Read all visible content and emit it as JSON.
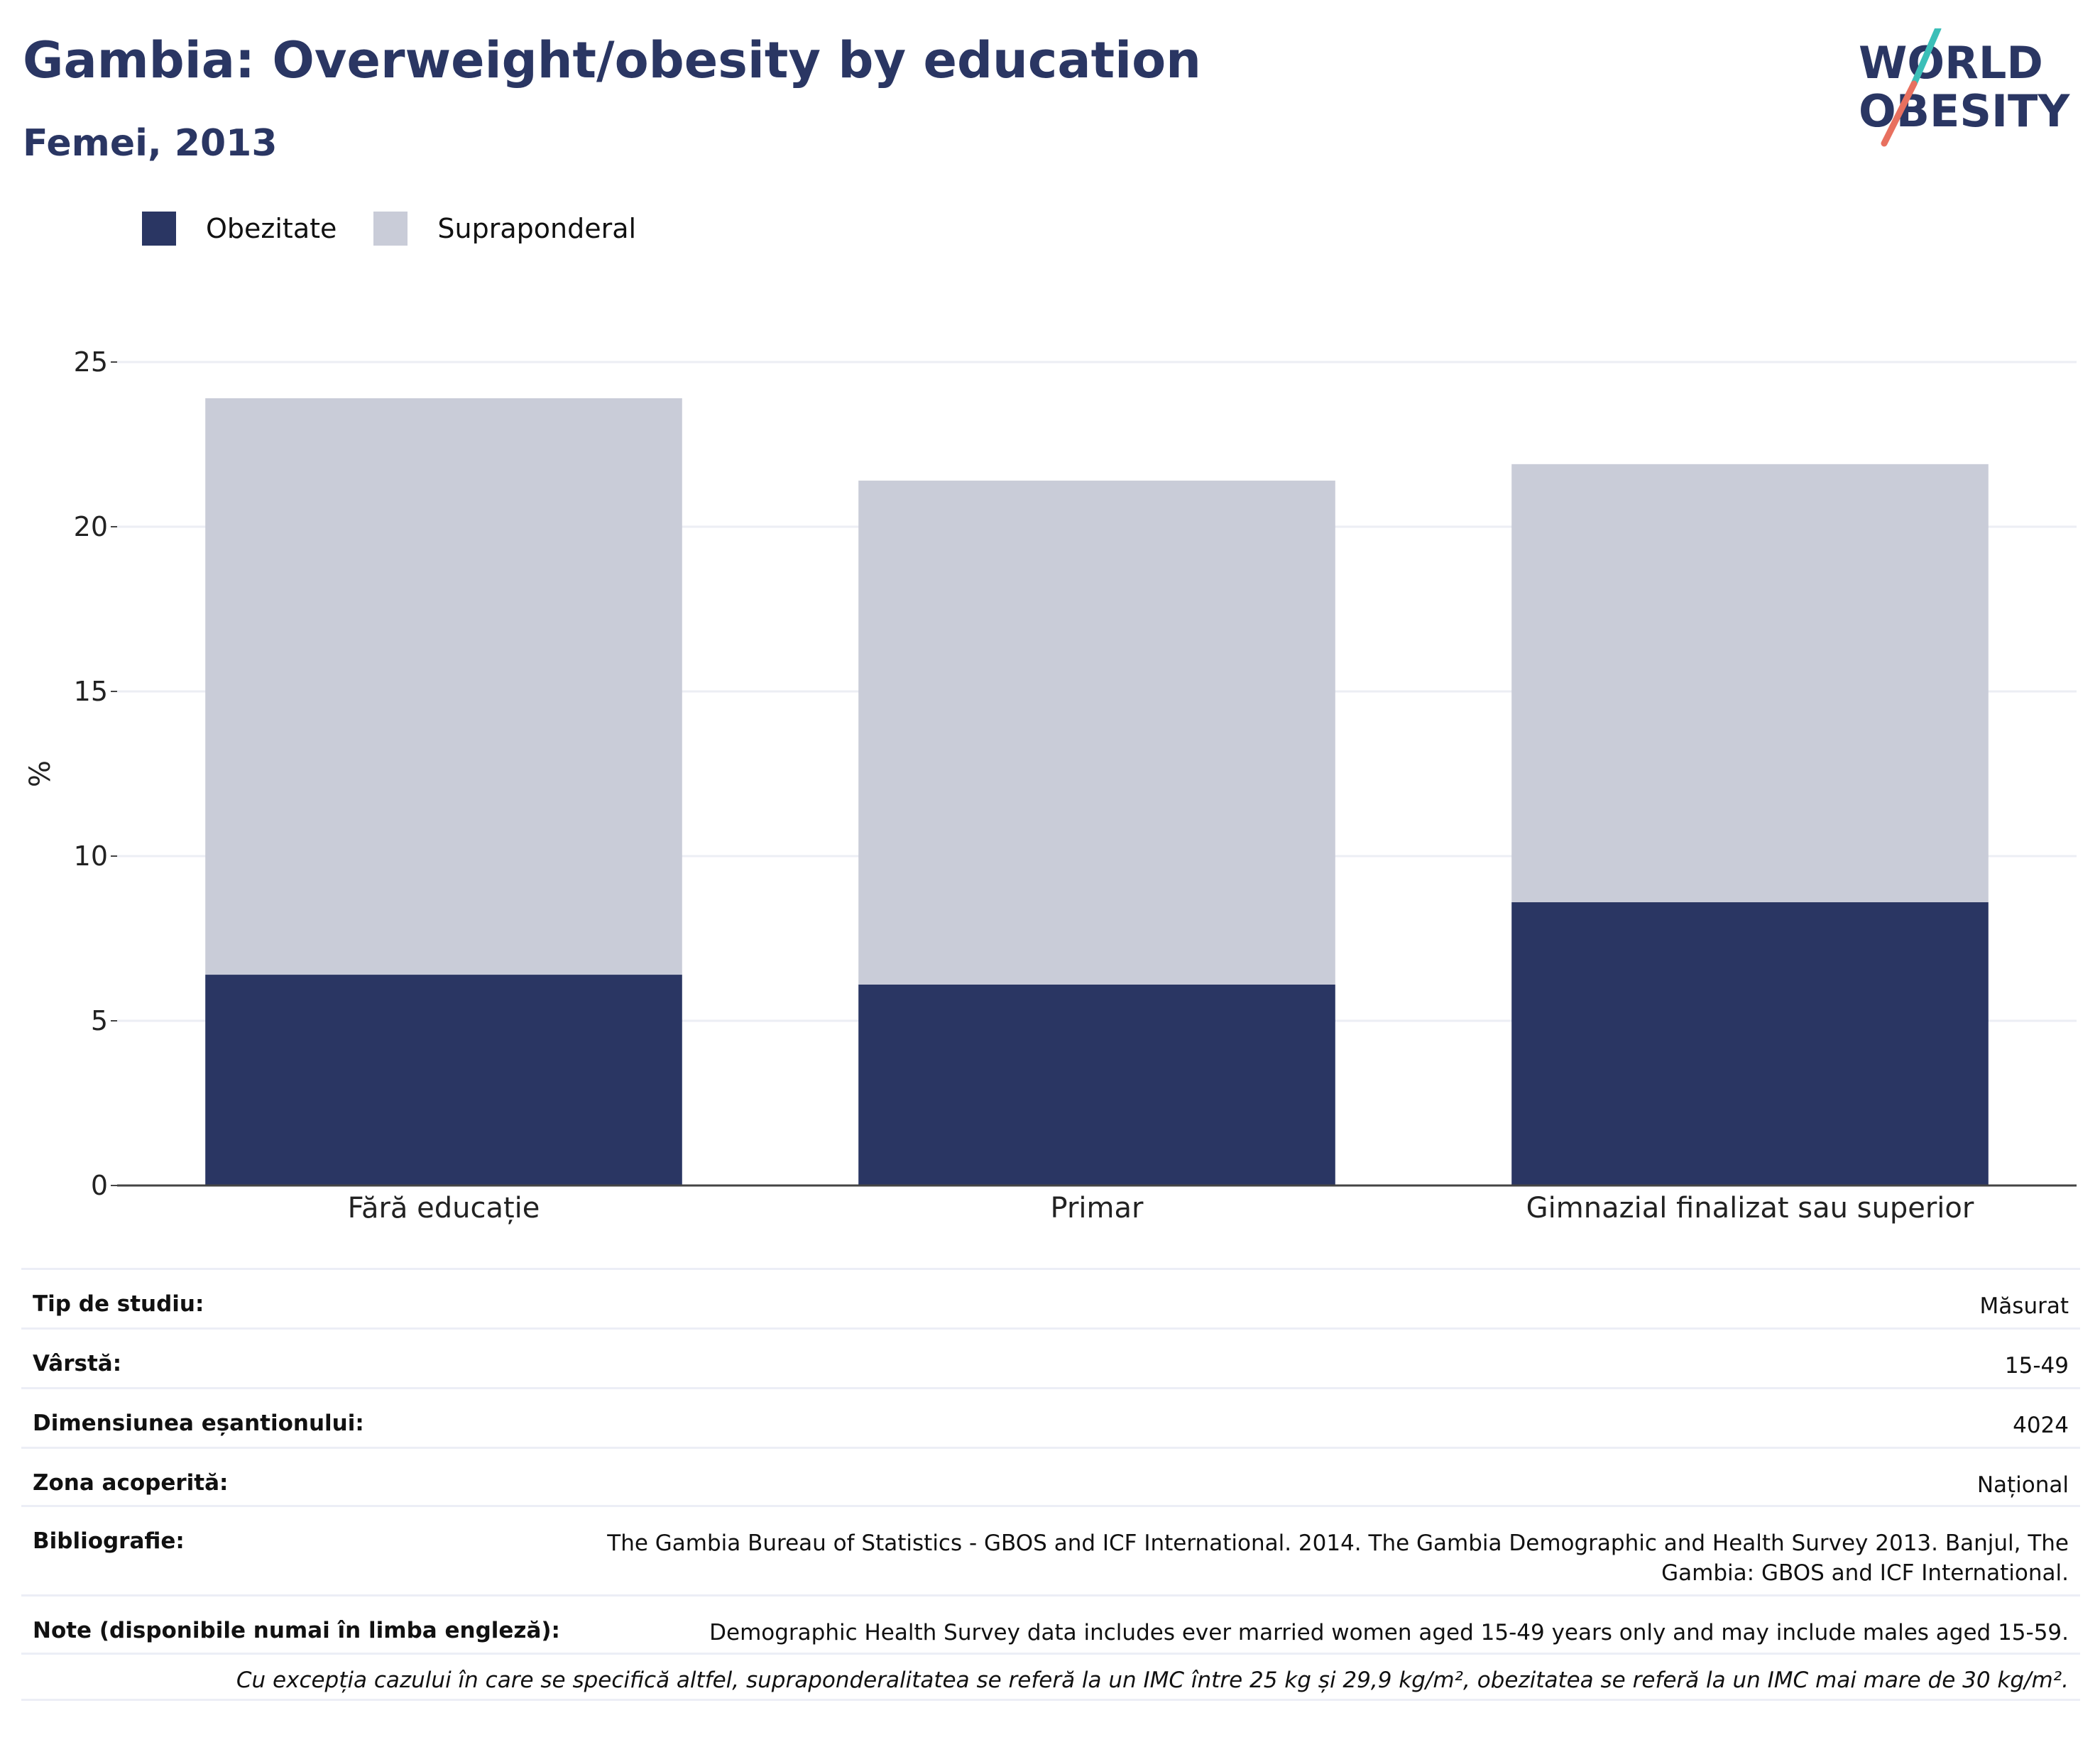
{
  "title": "Gambia: Overweight/obesity by education",
  "subtitle": "Femei, 2013",
  "logo": {
    "line1": "WORLD",
    "line2": "OBESITY"
  },
  "legend": [
    {
      "label": "Obezitate",
      "color": "#2a3663"
    },
    {
      "label": "Supraponderal",
      "color": "#c9ccd8"
    }
  ],
  "chart_data": {
    "type": "bar",
    "stacked": true,
    "categories": [
      "Fără educație",
      "Primar",
      "Gimnazial finalizat sau superior"
    ],
    "series": [
      {
        "name": "Obezitate",
        "values": [
          6.4,
          6.1,
          8.6
        ],
        "color": "#2a3663"
      },
      {
        "name": "Supraponderal",
        "values": [
          17.5,
          15.3,
          13.3
        ],
        "color": "#c9ccd8"
      }
    ],
    "ylabel": "%",
    "ylim": [
      0,
      25
    ],
    "yticks": [
      0,
      5,
      10,
      15,
      20,
      25
    ],
    "grid": true
  },
  "meta": {
    "study_type": {
      "label": "Tip de studiu:",
      "value": "Măsurat"
    },
    "age": {
      "label": "Vârstă:",
      "value": "15-49"
    },
    "sample_size": {
      "label": "Dimensiunea eșantionului:",
      "value": "4024"
    },
    "area": {
      "label": "Zona acoperită:",
      "value": "Național"
    },
    "bibliography": {
      "label": "Bibliografie:",
      "value": "The Gambia Bureau of Statistics - GBOS and ICF International. 2014. The Gambia Demographic and Health Survey 2013. Banjul, The Gambia: GBOS and ICF International."
    },
    "notes": {
      "label": "Note (disponibile numai în limba engleză):",
      "value": "Demographic Health Survey data includes ever married women aged 15-49 years only and may include males aged 15-59."
    },
    "footnote": "Cu excepția cazului în care se specifică altfel, supraponderalitatea se referă la un IMC între 25 kg și 29,9 kg/m², obezitatea se referă la un IMC mai mare de 30 kg/m²."
  }
}
